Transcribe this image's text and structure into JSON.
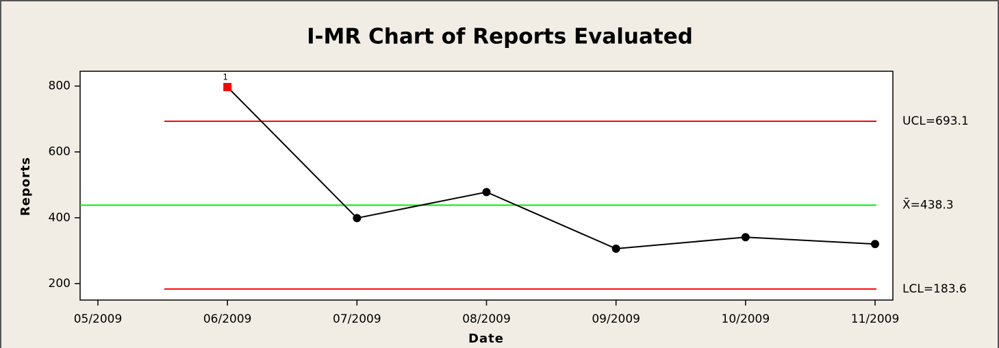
{
  "chart_data": {
    "type": "line",
    "title": "I-MR Chart of Reports Evaluated",
    "x_label": "Date",
    "y_label": "Reports",
    "categories": [
      "05/2009",
      "06/2009",
      "07/2009",
      "08/2009",
      "09/2009",
      "10/2009",
      "11/2009"
    ],
    "values": [
      null,
      797,
      399,
      478,
      306,
      341,
      320
    ],
    "point_flags": [
      null,
      "1",
      null,
      null,
      null,
      null,
      null
    ],
    "color": "#000000",
    "out_of_control_color": "#ff0000",
    "ylim": [
      150,
      845
    ],
    "yticks": [
      200,
      400,
      600,
      800
    ],
    "control_lines": [
      {
        "label": "UCL=693.1",
        "value": 693.1,
        "color": "#ff0000"
      },
      {
        "label": "X̄=438.3",
        "value": 438.3,
        "color": "#00ee00"
      },
      {
        "label": "LCL=183.6",
        "value": 183.6,
        "color": "#ff0000"
      }
    ]
  }
}
